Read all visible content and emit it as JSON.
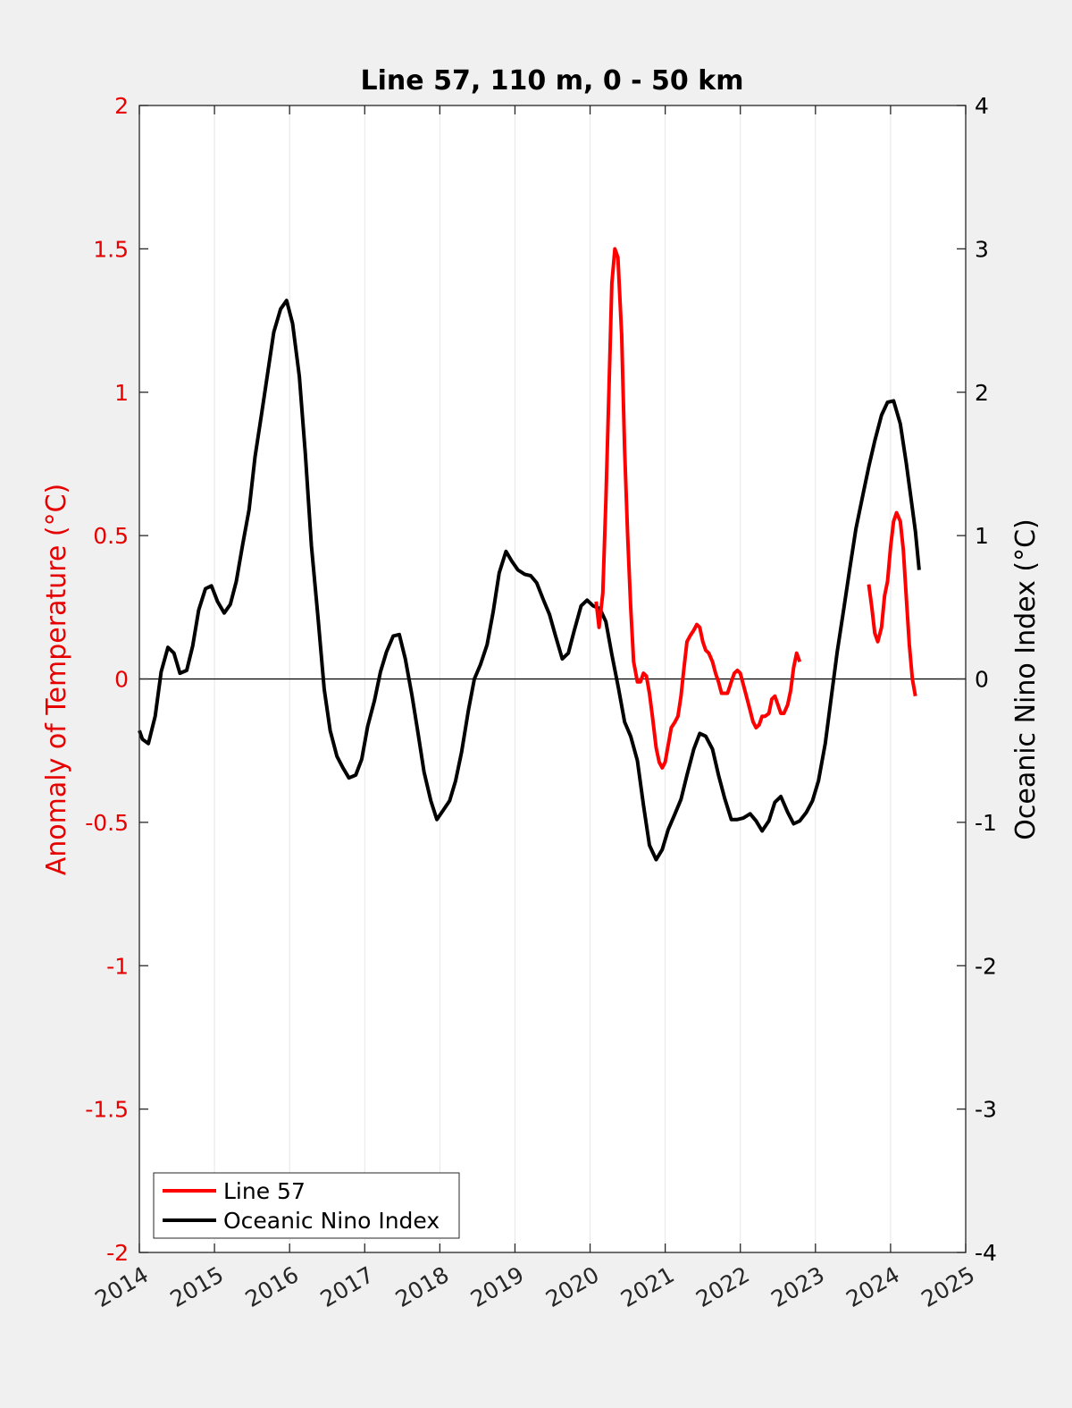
{
  "colors": {
    "left_axis": "#e60000",
    "series_line57": "#ff0000",
    "series_oni": "#000000",
    "background": "#f0f0f0",
    "plot_bg": "#ffffff",
    "grid": "#e6e6e6"
  },
  "chart_data": {
    "type": "line",
    "title": "Line 57, 110 m, 0 - 50 km",
    "xlabel": "",
    "xlim": [
      2014,
      2025
    ],
    "x_ticks": [
      "2014",
      "2015",
      "2016",
      "2017",
      "2018",
      "2019",
      "2020",
      "2021",
      "2022",
      "2023",
      "2024",
      "2025"
    ],
    "ylabel_left": "Anomaly of Temperature (°C)",
    "ylim_left": [
      -2,
      2
    ],
    "y_ticks_left": [
      "2",
      "1.5",
      "1",
      "0.5",
      "0",
      "-0.5",
      "-1",
      "-1.5",
      "-2"
    ],
    "ylabel_right": "Oceanic Nino Index (°C)",
    "ylim_right": [
      -4,
      4
    ],
    "y_ticks_right": [
      "4",
      "3",
      "2",
      "1",
      "0",
      "-1",
      "-2",
      "-3",
      "-4"
    ],
    "zero_line": true,
    "grid_x": true,
    "legend_position": "bottom-left",
    "series": [
      {
        "name": "Line 57",
        "axis": "left",
        "color": "#ff0000",
        "segments": [
          [
            [
              2020.08,
              0.27
            ],
            [
              2020.12,
              0.18
            ],
            [
              2020.17,
              0.3
            ],
            [
              2020.21,
              0.62
            ],
            [
              2020.25,
              1.0
            ],
            [
              2020.29,
              1.38
            ],
            [
              2020.33,
              1.5
            ],
            [
              2020.37,
              1.47
            ],
            [
              2020.42,
              1.2
            ],
            [
              2020.46,
              0.8
            ],
            [
              2020.5,
              0.5
            ],
            [
              2020.54,
              0.25
            ],
            [
              2020.58,
              0.06
            ],
            [
              2020.63,
              -0.01
            ],
            [
              2020.67,
              -0.01
            ],
            [
              2020.71,
              0.02
            ],
            [
              2020.75,
              0.01
            ],
            [
              2020.79,
              -0.05
            ],
            [
              2020.83,
              -0.13
            ],
            [
              2020.88,
              -0.24
            ],
            [
              2020.92,
              -0.29
            ],
            [
              2020.96,
              -0.31
            ],
            [
              2021.0,
              -0.29
            ],
            [
              2021.04,
              -0.23
            ],
            [
              2021.08,
              -0.17
            ],
            [
              2021.13,
              -0.15
            ],
            [
              2021.17,
              -0.13
            ],
            [
              2021.21,
              -0.06
            ],
            [
              2021.25,
              0.04
            ],
            [
              2021.29,
              0.13
            ],
            [
              2021.33,
              0.15
            ],
            [
              2021.38,
              0.17
            ],
            [
              2021.42,
              0.19
            ],
            [
              2021.46,
              0.18
            ],
            [
              2021.5,
              0.13
            ],
            [
              2021.54,
              0.1
            ],
            [
              2021.58,
              0.09
            ],
            [
              2021.63,
              0.06
            ],
            [
              2021.67,
              0.02
            ],
            [
              2021.71,
              -0.01
            ],
            [
              2021.75,
              -0.05
            ],
            [
              2021.79,
              -0.05
            ],
            [
              2021.83,
              -0.05
            ],
            [
              2021.88,
              -0.01
            ],
            [
              2021.92,
              0.02
            ],
            [
              2021.96,
              0.03
            ],
            [
              2022.0,
              0.02
            ],
            [
              2022.04,
              -0.02
            ],
            [
              2022.08,
              -0.06
            ],
            [
              2022.13,
              -0.11
            ],
            [
              2022.17,
              -0.15
            ],
            [
              2022.21,
              -0.17
            ],
            [
              2022.25,
              -0.16
            ],
            [
              2022.29,
              -0.13
            ],
            [
              2022.33,
              -0.13
            ],
            [
              2022.38,
              -0.12
            ],
            [
              2022.42,
              -0.07
            ],
            [
              2022.46,
              -0.06
            ],
            [
              2022.5,
              -0.09
            ],
            [
              2022.54,
              -0.12
            ],
            [
              2022.58,
              -0.12
            ],
            [
              2022.63,
              -0.09
            ],
            [
              2022.67,
              -0.04
            ],
            [
              2022.71,
              0.04
            ],
            [
              2022.75,
              0.09
            ],
            [
              2022.79,
              0.06
            ]
          ],
          [
            [
              2023.71,
              0.33
            ],
            [
              2023.75,
              0.25
            ],
            [
              2023.79,
              0.16
            ],
            [
              2023.83,
              0.13
            ],
            [
              2023.88,
              0.18
            ],
            [
              2023.92,
              0.29
            ],
            [
              2023.96,
              0.34
            ],
            [
              2024.0,
              0.46
            ],
            [
              2024.04,
              0.55
            ],
            [
              2024.08,
              0.58
            ],
            [
              2024.13,
              0.55
            ],
            [
              2024.17,
              0.45
            ],
            [
              2024.21,
              0.28
            ],
            [
              2024.25,
              0.12
            ],
            [
              2024.29,
              0.0
            ],
            [
              2024.33,
              -0.06
            ]
          ]
        ]
      },
      {
        "name": "Oceanic Nino Index",
        "axis": "right",
        "color": "#000000",
        "segments": [
          [
            [
              2014.0,
              -0.36
            ],
            [
              2014.04,
              -0.42
            ],
            [
              2014.12,
              -0.45
            ],
            [
              2014.21,
              -0.26
            ],
            [
              2014.29,
              0.05
            ],
            [
              2014.38,
              0.22
            ],
            [
              2014.46,
              0.18
            ],
            [
              2014.54,
              0.04
            ],
            [
              2014.63,
              0.06
            ],
            [
              2014.71,
              0.23
            ],
            [
              2014.79,
              0.48
            ],
            [
              2014.88,
              0.63
            ],
            [
              2014.96,
              0.65
            ],
            [
              2015.04,
              0.54
            ],
            [
              2015.13,
              0.46
            ],
            [
              2015.21,
              0.52
            ],
            [
              2015.29,
              0.68
            ],
            [
              2015.38,
              0.95
            ],
            [
              2015.46,
              1.18
            ],
            [
              2015.54,
              1.55
            ],
            [
              2015.63,
              1.86
            ],
            [
              2015.71,
              2.14
            ],
            [
              2015.79,
              2.42
            ],
            [
              2015.88,
              2.58
            ],
            [
              2015.96,
              2.64
            ],
            [
              2016.04,
              2.48
            ],
            [
              2016.13,
              2.11
            ],
            [
              2016.21,
              1.57
            ],
            [
              2016.29,
              0.93
            ],
            [
              2016.38,
              0.42
            ],
            [
              2016.46,
              -0.07
            ],
            [
              2016.54,
              -0.36
            ],
            [
              2016.63,
              -0.54
            ],
            [
              2016.71,
              -0.62
            ],
            [
              2016.79,
              -0.69
            ],
            [
              2016.88,
              -0.67
            ],
            [
              2016.96,
              -0.56
            ],
            [
              2017.04,
              -0.33
            ],
            [
              2017.13,
              -0.15
            ],
            [
              2017.21,
              0.05
            ],
            [
              2017.29,
              0.19
            ],
            [
              2017.38,
              0.3
            ],
            [
              2017.46,
              0.31
            ],
            [
              2017.54,
              0.14
            ],
            [
              2017.63,
              -0.12
            ],
            [
              2017.71,
              -0.38
            ],
            [
              2017.79,
              -0.65
            ],
            [
              2017.88,
              -0.85
            ],
            [
              2017.96,
              -0.98
            ],
            [
              2018.04,
              -0.92
            ],
            [
              2018.13,
              -0.85
            ],
            [
              2018.21,
              -0.71
            ],
            [
              2018.29,
              -0.51
            ],
            [
              2018.38,
              -0.22
            ],
            [
              2018.46,
              0.0
            ],
            [
              2018.54,
              0.1
            ],
            [
              2018.63,
              0.24
            ],
            [
              2018.71,
              0.47
            ],
            [
              2018.79,
              0.74
            ],
            [
              2018.88,
              0.89
            ],
            [
              2018.96,
              0.82
            ],
            [
              2019.04,
              0.76
            ],
            [
              2019.13,
              0.73
            ],
            [
              2019.21,
              0.72
            ],
            [
              2019.29,
              0.67
            ],
            [
              2019.38,
              0.55
            ],
            [
              2019.46,
              0.45
            ],
            [
              2019.54,
              0.3
            ],
            [
              2019.63,
              0.14
            ],
            [
              2019.71,
              0.18
            ],
            [
              2019.79,
              0.34
            ],
            [
              2019.88,
              0.51
            ],
            [
              2019.96,
              0.55
            ],
            [
              2020.04,
              0.51
            ],
            [
              2020.13,
              0.49
            ],
            [
              2020.21,
              0.4
            ],
            [
              2020.29,
              0.17
            ],
            [
              2020.38,
              -0.07
            ],
            [
              2020.46,
              -0.3
            ],
            [
              2020.54,
              -0.4
            ],
            [
              2020.63,
              -0.57
            ],
            [
              2020.71,
              -0.88
            ],
            [
              2020.79,
              -1.16
            ],
            [
              2020.88,
              -1.26
            ],
            [
              2020.96,
              -1.19
            ],
            [
              2021.04,
              -1.05
            ],
            [
              2021.13,
              -0.94
            ],
            [
              2021.21,
              -0.84
            ],
            [
              2021.29,
              -0.67
            ],
            [
              2021.38,
              -0.49
            ],
            [
              2021.46,
              -0.38
            ],
            [
              2021.54,
              -0.4
            ],
            [
              2021.63,
              -0.49
            ],
            [
              2021.71,
              -0.67
            ],
            [
              2021.79,
              -0.83
            ],
            [
              2021.88,
              -0.98
            ],
            [
              2021.96,
              -0.98
            ],
            [
              2022.04,
              -0.97
            ],
            [
              2022.13,
              -0.94
            ],
            [
              2022.21,
              -0.99
            ],
            [
              2022.29,
              -1.06
            ],
            [
              2022.38,
              -0.99
            ],
            [
              2022.46,
              -0.86
            ],
            [
              2022.54,
              -0.82
            ],
            [
              2022.63,
              -0.93
            ],
            [
              2022.71,
              -1.01
            ],
            [
              2022.79,
              -0.99
            ],
            [
              2022.88,
              -0.93
            ],
            [
              2022.96,
              -0.85
            ],
            [
              2023.04,
              -0.71
            ],
            [
              2023.13,
              -0.45
            ],
            [
              2023.21,
              -0.13
            ],
            [
              2023.29,
              0.19
            ],
            [
              2023.38,
              0.5
            ],
            [
              2023.46,
              0.78
            ],
            [
              2023.54,
              1.05
            ],
            [
              2023.63,
              1.28
            ],
            [
              2023.71,
              1.48
            ],
            [
              2023.79,
              1.66
            ],
            [
              2023.88,
              1.84
            ],
            [
              2023.96,
              1.93
            ],
            [
              2024.04,
              1.94
            ],
            [
              2024.13,
              1.78
            ],
            [
              2024.21,
              1.5
            ],
            [
              2024.29,
              1.19
            ],
            [
              2024.33,
              1.03
            ],
            [
              2024.38,
              0.76
            ]
          ]
        ]
      }
    ]
  }
}
